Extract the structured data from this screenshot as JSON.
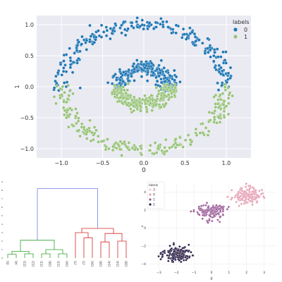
{
  "chart_data": [
    {
      "type": "scatter",
      "title": "",
      "xlabel": "0",
      "ylabel": "1",
      "xlim": [
        -1.3,
        1.3
      ],
      "ylim": [
        -1.15,
        1.15
      ],
      "grid": true,
      "background": "#eaeaf2",
      "x_ticks": [
        -1.0,
        -0.5,
        0.0,
        0.5,
        1.0
      ],
      "x_tick_labels": [
        "−1.0",
        "−0.5",
        "0.0",
        "0.5",
        "1.0"
      ],
      "y_ticks": [
        -1.0,
        -0.5,
        0.0,
        0.5,
        1.0
      ],
      "y_tick_labels": [
        "−1.0",
        "−0.5",
        "0.0",
        "0.5",
        "1.0"
      ],
      "legend": {
        "title": "labels",
        "placement": "top-right",
        "entries": [
          "0",
          "1"
        ]
      },
      "series": [
        {
          "name": "0",
          "color": "#1f77b4",
          "shapes": [
            {
              "kind": "arc",
              "radius": 1.0,
              "theta_deg": [
                0,
                180
              ],
              "noise": 0.06,
              "count": 240
            },
            {
              "kind": "arc",
              "radius": 0.3,
              "theta_deg": [
                0,
                180
              ],
              "noise": 0.06,
              "count": 230
            }
          ]
        },
        {
          "name": "1",
          "color": "#98c379",
          "shapes": [
            {
              "kind": "arc",
              "radius": 1.0,
              "theta_deg": [
                180,
                360
              ],
              "noise": 0.06,
              "count": 240
            },
            {
              "kind": "arc",
              "radius": 0.3,
              "theta_deg": [
                180,
                360
              ],
              "noise": 0.06,
              "count": 230
            }
          ]
        }
      ]
    },
    {
      "type": "dendrogram",
      "title": "",
      "xlabel": "",
      "ylabel": "",
      "y_ticks": [
        0,
        1,
        2,
        3,
        4,
        5,
        6,
        7,
        8,
        9
      ],
      "leaf_labels": [
        "(5)",
        "(4)",
        "(13)",
        "(12)",
        "(13)",
        "(18)",
        "(13)",
        "(16)",
        "(7)",
        "(7)",
        "(16)",
        "(18)",
        "(14)",
        "(14)",
        "(18)"
      ],
      "link_colors": {
        "left_cluster": "#2ca02c",
        "right_cluster": "#d62728",
        "root": "#6f7fe0"
      },
      "merges": [
        {
          "children": [
            "L0",
            "L1"
          ],
          "height": 0.45,
          "cluster": "left"
        },
        {
          "children": [
            "L2",
            "L3"
          ],
          "height": 0.5,
          "cluster": "left"
        },
        {
          "children": [
            "L4",
            "L5"
          ],
          "height": 0.5,
          "cluster": "left"
        },
        {
          "children": [
            "L6",
            "L7"
          ],
          "height": 0.5,
          "cluster": "left"
        },
        {
          "children": [
            "M0",
            "M1"
          ],
          "height": 0.8,
          "cluster": "left"
        },
        {
          "children": [
            "M2",
            "M3"
          ],
          "height": 1.0,
          "cluster": "left"
        },
        {
          "children": [
            "M4",
            "M5"
          ],
          "height": 2.1,
          "cluster": "left"
        },
        {
          "children": [
            "L9",
            "L10"
          ],
          "height": 2.4,
          "cluster": "right"
        },
        {
          "children": [
            "L11",
            "L12"
          ],
          "height": 1.9,
          "cluster": "right"
        },
        {
          "children": [
            "L13",
            "L14"
          ],
          "height": 2.0,
          "cluster": "right"
        },
        {
          "children": [
            "L8",
            "M7"
          ],
          "height": 3.0,
          "cluster": "right"
        },
        {
          "children": [
            "M8",
            "M9"
          ],
          "height": 2.9,
          "cluster": "right"
        },
        {
          "children": [
            "M10",
            "M11"
          ],
          "height": 3.5,
          "cluster": "right"
        },
        {
          "children": [
            "M6",
            "M12"
          ],
          "height": 8.2,
          "cluster": "root"
        }
      ]
    },
    {
      "type": "scatter",
      "title": "",
      "xlabel": "0",
      "ylabel": "1",
      "xlim": [
        -3.7,
        3.7
      ],
      "ylim": [
        -4.6,
        5.0
      ],
      "grid": true,
      "background": "#ffffff",
      "x_ticks": [
        -3,
        -2,
        -1,
        0,
        1,
        2,
        3
      ],
      "x_tick_labels": [
        "−3",
        "−2",
        "−1",
        "0",
        "1",
        "2",
        "3"
      ],
      "y_ticks": [
        -4,
        -2,
        0,
        2,
        4
      ],
      "y_tick_labels": [
        "−4",
        "−2",
        "0",
        "2",
        "4"
      ],
      "legend": {
        "title": "labels",
        "placement": "top-left",
        "entries": [
          "3",
          "0",
          "1",
          "2"
        ]
      },
      "series": [
        {
          "name": "3",
          "color": "#f4c7d0",
          "shapes": []
        },
        {
          "name": "0",
          "color": "#e6a0b4",
          "shapes": [
            {
              "kind": "blob",
              "center": [
                2.0,
                3.6
              ],
              "spread": [
                0.4,
                0.22
              ],
              "count": 150
            }
          ]
        },
        {
          "name": "1",
          "color": "#9c5f97",
          "shapes": [
            {
              "kind": "blob",
              "center": [
                0.0,
                1.9
              ],
              "spread": [
                0.4,
                0.22
              ],
              "count": 150
            }
          ]
        },
        {
          "name": "2",
          "color": "#2a1e45",
          "shapes": [
            {
              "kind": "blob",
              "center": [
                -2.0,
                -2.9
              ],
              "spread": [
                0.4,
                0.22
              ],
              "count": 150
            }
          ]
        }
      ]
    }
  ]
}
